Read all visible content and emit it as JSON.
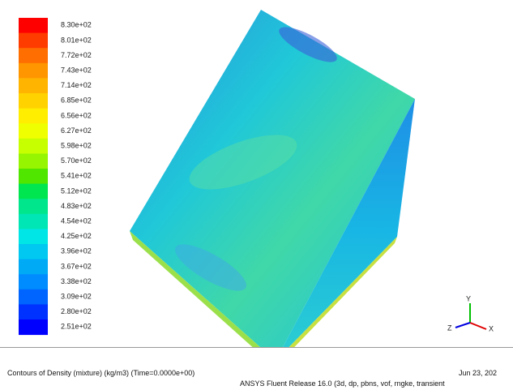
{
  "colorbar": {
    "labels": [
      "8.30e+02",
      "8.01e+02",
      "7.72e+02",
      "7.43e+02",
      "7.14e+02",
      "6.85e+02",
      "6.56e+02",
      "6.27e+02",
      "5.98e+02",
      "5.70e+02",
      "5.41e+02",
      "5.12e+02",
      "4.83e+02",
      "4.54e+02",
      "4.25e+02",
      "3.96e+02",
      "3.67e+02",
      "3.38e+02",
      "3.09e+02",
      "2.80e+02",
      "2.51e+02"
    ],
    "colors": [
      "#ff0000",
      "#ff3c00",
      "#ff6e00",
      "#ff9600",
      "#ffb400",
      "#ffd200",
      "#ffee00",
      "#f0ff00",
      "#c8ff00",
      "#96f500",
      "#50e600",
      "#00e650",
      "#00e68c",
      "#00e6b4",
      "#00e6e6",
      "#00c8f0",
      "#00aaf5",
      "#008cff",
      "#0064ff",
      "#0032ff",
      "#0000ff"
    ]
  },
  "axes": {
    "y": "Y",
    "z": "Z",
    "x": "X"
  },
  "footer": {
    "title": "Contours of Density (mixture)  (kg/m3)  (Time=0.0000e+00)",
    "date": "Jun 23, 202",
    "release": "ANSYS Fluent Release 16.0 (3d, dp, pbns, vof, rngke, transient"
  }
}
